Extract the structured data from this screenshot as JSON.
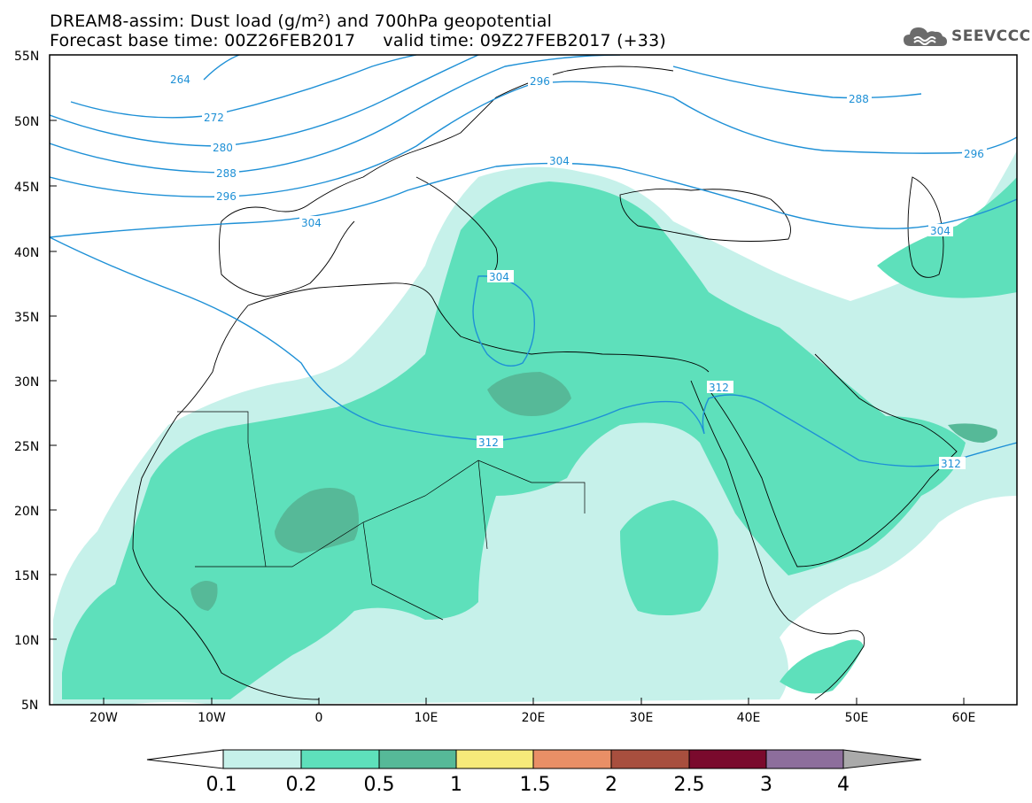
{
  "title": {
    "line1": "DREAM8-assim: Dust load (g/m²) and 700hPa geopotential",
    "line2": "Forecast base time: 00Z26FEB2017     valid time: 09Z27FEB2017 (+33)"
  },
  "logo": {
    "icon": "cloud-icon",
    "text": "SEEVCCC"
  },
  "axes": {
    "lat_labels": [
      "55N",
      "50N",
      "45N",
      "40N",
      "35N",
      "30N",
      "25N",
      "20N",
      "15N",
      "10N",
      "5N"
    ],
    "lon_labels": [
      "20W",
      "10W",
      "0",
      "10E",
      "20E",
      "30E",
      "40E",
      "50E",
      "60E"
    ]
  },
  "colors": {
    "contour": "#1e90d6",
    "dust_0_1": "#c6f1ea",
    "dust_0_2": "#5ee0bb",
    "dust_0_5": "#56b998",
    "coast": "#000000"
  },
  "contours": {
    "labels": [
      "264",
      "272",
      "280",
      "288",
      "296",
      "304",
      "296",
      "288",
      "296",
      "304",
      "304",
      "312",
      "312",
      "312"
    ]
  },
  "colorbar": {
    "labels": [
      "0.1",
      "0.2",
      "0.5",
      "1",
      "1.5",
      "2",
      "2.5",
      "3",
      "4"
    ],
    "colors": [
      "#c6f1ea",
      "#5ee0bb",
      "#56b998",
      "#f6ea7a",
      "#e98f66",
      "#a84f3e",
      "#7a0a2d",
      "#8d6e9c",
      "#aaaaaa"
    ]
  }
}
